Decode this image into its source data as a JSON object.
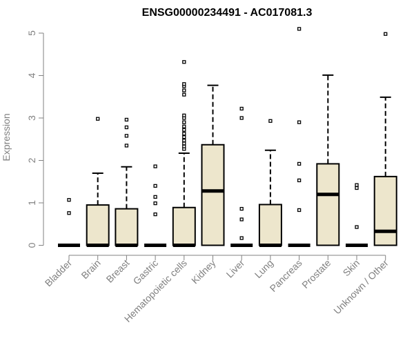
{
  "chart_data": {
    "type": "boxplot",
    "title": "ENSG00000234491 - AC017081.3",
    "xlabel": "",
    "ylabel": "Expression",
    "ylim": [
      0,
      5
    ],
    "yticks": [
      "0",
      "1",
      "2",
      "3",
      "4",
      "5"
    ],
    "box_fill": "#ede6cc",
    "axis_color": "#808080",
    "categories": [
      "Bladder",
      "Brain",
      "Breast",
      "Gastric",
      "Hematopoietic cells",
      "Kidney",
      "Liver",
      "Lung",
      "Pancreas",
      "Prostate",
      "Skin",
      "Unknown / Other"
    ],
    "boxes": [
      {
        "q1": 0,
        "median": 0,
        "q3": 0,
        "whisker_low": 0,
        "whisker_high": 0,
        "outliers": [
          0.76,
          1.07
        ]
      },
      {
        "q1": 0,
        "median": 0,
        "q3": 0.95,
        "whisker_low": 0,
        "whisker_high": 1.7,
        "outliers": [
          2.98
        ]
      },
      {
        "q1": 0,
        "median": 0,
        "q3": 0.86,
        "whisker_low": 0,
        "whisker_high": 1.85,
        "outliers": [
          2.35,
          2.58,
          2.78,
          2.96
        ]
      },
      {
        "q1": 0,
        "median": 0,
        "q3": 0,
        "whisker_low": 0,
        "whisker_high": 0,
        "outliers": [
          0.73,
          0.99,
          1.14,
          1.4,
          1.86
        ]
      },
      {
        "q1": 0,
        "median": 0,
        "q3": 0.89,
        "whisker_low": 0,
        "whisker_high": 2.17,
        "outliers": [
          2.27,
          2.33,
          2.4,
          2.47,
          2.55,
          2.63,
          2.72,
          2.8,
          2.9,
          3.0,
          3.06,
          3.55,
          3.65,
          3.75,
          3.8,
          4.32
        ]
      },
      {
        "q1": 0,
        "median": 1.28,
        "q3": 2.37,
        "whisker_low": 0,
        "whisker_high": 3.77,
        "outliers": []
      },
      {
        "q1": 0,
        "median": 0,
        "q3": 0,
        "whisker_low": 0,
        "whisker_high": 0,
        "outliers": [
          0.17,
          0.61,
          0.86,
          3.0,
          3.22
        ]
      },
      {
        "q1": 0,
        "median": 0,
        "q3": 0.96,
        "whisker_low": 0,
        "whisker_high": 2.24,
        "outliers": [
          2.93
        ]
      },
      {
        "q1": 0,
        "median": 0,
        "q3": 0,
        "whisker_low": 0,
        "whisker_high": 0,
        "outliers": [
          0.83,
          1.53,
          1.92,
          2.9,
          5.1
        ]
      },
      {
        "q1": 0,
        "median": 1.2,
        "q3": 1.92,
        "whisker_low": 0,
        "whisker_high": 4.01,
        "outliers": []
      },
      {
        "q1": 0,
        "median": 0,
        "q3": 0,
        "whisker_low": 0,
        "whisker_high": 0,
        "outliers": [
          0.43,
          1.35,
          1.42
        ]
      },
      {
        "q1": 0,
        "median": 0.33,
        "q3": 1.62,
        "whisker_low": 0,
        "whisker_high": 3.49,
        "outliers": [
          4.98
        ]
      }
    ]
  }
}
